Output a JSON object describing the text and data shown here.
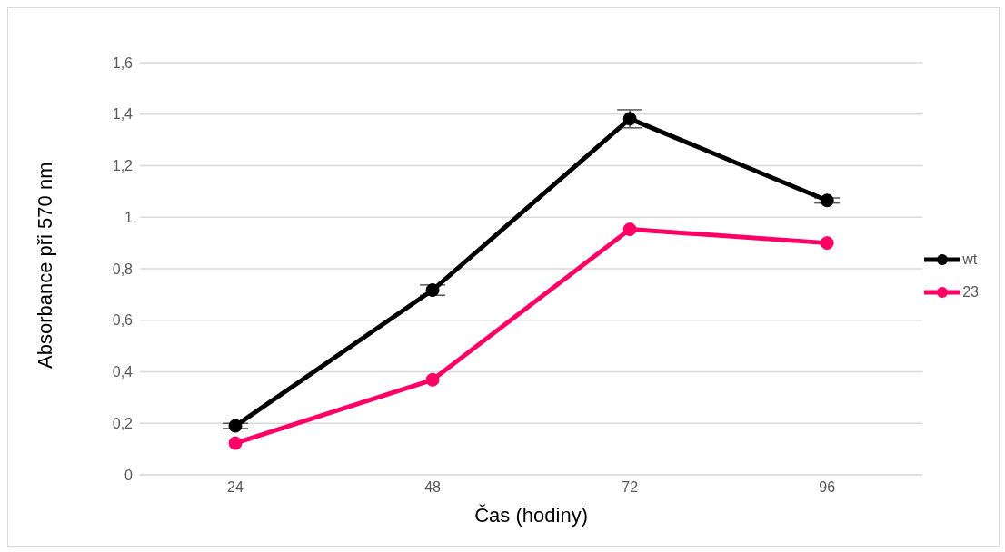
{
  "chart_data": {
    "type": "line",
    "xlabel": "Čas (hodiny)",
    "ylabel": "Absorbance při 570 nm",
    "categories": [
      "24",
      "48",
      "72",
      "96"
    ],
    "series": [
      {
        "name": "wt",
        "color": "#000000",
        "values": [
          0.19,
          0.717,
          1.382,
          1.065
        ],
        "errors": [
          0.01,
          0.02,
          0.035,
          0.01
        ]
      },
      {
        "name": "23",
        "color": "#ff0066",
        "values": [
          0.123,
          0.369,
          0.953,
          0.9
        ]
      }
    ],
    "ylim": [
      0,
      1.6
    ],
    "yticks": [
      0,
      {
        "value": 0.2,
        "label": "0,2"
      },
      {
        "value": 0.4,
        "label": "0,4"
      },
      {
        "value": 0.6,
        "label": "0,6"
      },
      {
        "value": 0.8,
        "label": "0,8"
      },
      1,
      {
        "value": 1.2,
        "label": "1,2"
      },
      {
        "value": 1.4,
        "label": "1,4"
      },
      {
        "value": 1.6,
        "label": "1,6"
      }
    ],
    "grid": "y",
    "legend": "right",
    "marker": "circle",
    "line_style": "solid"
  }
}
